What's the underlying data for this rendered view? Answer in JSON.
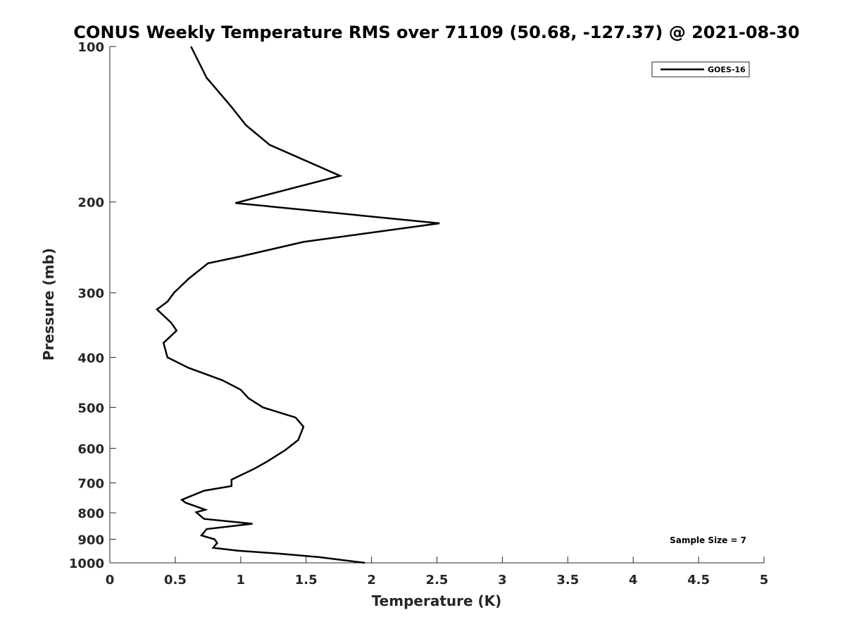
{
  "chart_data": {
    "type": "line",
    "title": "CONUS Weekly Temperature RMS over 71109 (50.68, -127.37) @ 2021-08-30",
    "xlabel": "Temperature (K)",
    "ylabel": "Pressure (mb)",
    "xlim": [
      0,
      5
    ],
    "ylim": [
      100,
      1000
    ],
    "yscale": "log",
    "y_reversed": true,
    "grid": false,
    "legend_position": "top-right",
    "xticks": [
      0,
      0.5,
      1,
      1.5,
      2,
      2.5,
      3,
      3.5,
      4,
      4.5,
      5
    ],
    "xtick_labels": [
      "0",
      "0.5",
      "1",
      "1.5",
      "2",
      "2.5",
      "3",
      "3.5",
      "4",
      "4.5",
      "5"
    ],
    "yticks": [
      100,
      200,
      300,
      400,
      500,
      600,
      700,
      800,
      900,
      1000
    ],
    "ytick_labels": [
      "100",
      "200",
      "300",
      "400",
      "500",
      "600",
      "700",
      "800",
      "900",
      "1000"
    ],
    "series": [
      {
        "name": "GOES-16",
        "color": "#000000",
        "points": [
          [
            0.62,
            100
          ],
          [
            0.74,
            115
          ],
          [
            0.92,
            130
          ],
          [
            1.04,
            142
          ],
          [
            1.22,
            155
          ],
          [
            1.76,
            178
          ],
          [
            0.96,
            201
          ],
          [
            2.52,
            220
          ],
          [
            1.48,
            239
          ],
          [
            1.0,
            255
          ],
          [
            0.75,
            263
          ],
          [
            0.6,
            282
          ],
          [
            0.49,
            300
          ],
          [
            0.44,
            312
          ],
          [
            0.36,
            323
          ],
          [
            0.47,
            343
          ],
          [
            0.51,
            355
          ],
          [
            0.41,
            375
          ],
          [
            0.44,
            400
          ],
          [
            0.6,
            419
          ],
          [
            0.86,
            443
          ],
          [
            1.0,
            462
          ],
          [
            1.06,
            480
          ],
          [
            1.17,
            500
          ],
          [
            1.42,
            523
          ],
          [
            1.48,
            545
          ],
          [
            1.44,
            578
          ],
          [
            1.34,
            605
          ],
          [
            1.2,
            637
          ],
          [
            1.1,
            658
          ],
          [
            0.93,
            690
          ],
          [
            0.93,
            710
          ],
          [
            0.72,
            725
          ],
          [
            0.55,
            755
          ],
          [
            0.58,
            765
          ],
          [
            0.73,
            789
          ],
          [
            0.66,
            798
          ],
          [
            0.72,
            822
          ],
          [
            1.09,
            840
          ],
          [
            0.74,
            860
          ],
          [
            0.7,
            885
          ],
          [
            0.8,
            900
          ],
          [
            0.82,
            915
          ],
          [
            0.79,
            935
          ],
          [
            0.98,
            947
          ],
          [
            1.3,
            960
          ],
          [
            1.6,
            975
          ],
          [
            1.95,
            1000
          ]
        ]
      }
    ],
    "annotations": [
      "Sample Size = 7"
    ]
  }
}
